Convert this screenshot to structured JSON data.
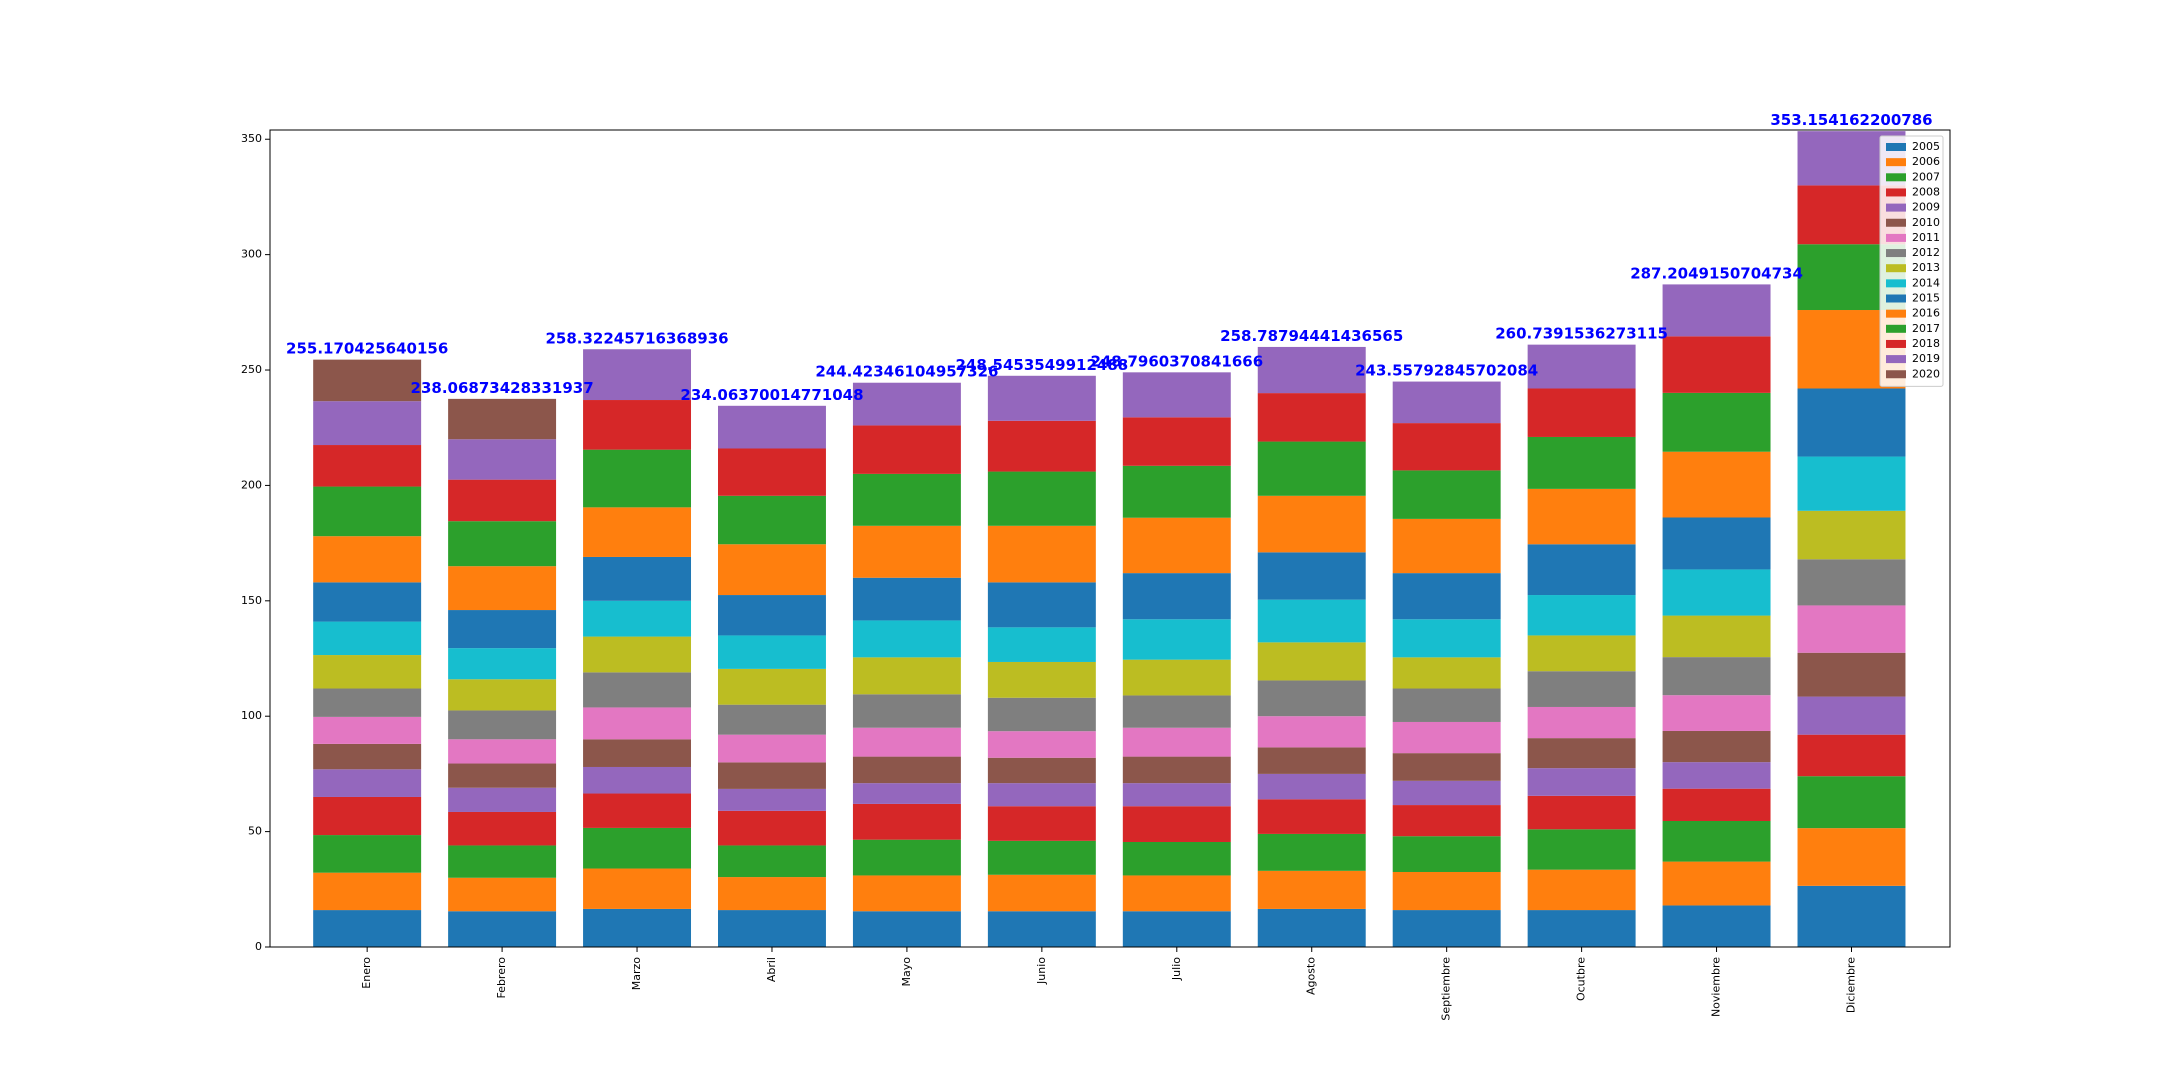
{
  "chart_data": {
    "type": "bar",
    "stacked": true,
    "title": "",
    "xlabel": "",
    "ylabel": "",
    "ylim": [
      0,
      354
    ],
    "yticks": [
      0,
      50,
      100,
      150,
      200,
      250,
      300,
      350
    ],
    "grid": false,
    "legend_position": "top-right",
    "categories": [
      "Enero",
      "Febrero",
      "Marzo",
      "Abril",
      "Mayo",
      "Junio",
      "Julio",
      "Agosto",
      "Septiembre",
      "Ocutbre",
      "Noviembre",
      "Diciembre"
    ],
    "totals_labels": [
      "255.170425640156",
      "238.06873428331937",
      "258.32245716368936",
      "234.06370014771048",
      "244.42346104957326",
      "248.5453549912488",
      "248.7960370841666",
      "258.78794441436565",
      "243.55792845702084",
      "260.7391536273115",
      "287.2049150704734",
      "353.154162200786"
    ],
    "series": [
      {
        "name": "2005",
        "color": "#1f77b4",
        "values": [
          16,
          15.5,
          16.5,
          16,
          15.5,
          15.5,
          15.5,
          16.5,
          16,
          16,
          18,
          26.5
        ]
      },
      {
        "name": "2006",
        "color": "#ff7f0e",
        "values": [
          16.2,
          14.5,
          17.5,
          14.3,
          15.5,
          15.8,
          15.5,
          16.5,
          16.5,
          17.5,
          19,
          25
        ]
      },
      {
        "name": "2007",
        "color": "#2ca02c",
        "values": [
          16.3,
          14,
          17.6,
          13.7,
          15.5,
          14.7,
          14.5,
          16,
          15.5,
          17.5,
          17.6,
          22.5
        ]
      },
      {
        "name": "2008",
        "color": "#d62728",
        "values": [
          16.5,
          14.5,
          14.9,
          15,
          15.5,
          15,
          15.5,
          15,
          13.5,
          14.5,
          14,
          18
        ]
      },
      {
        "name": "2009",
        "color": "#9467bd",
        "values": [
          12,
          10.5,
          11.5,
          9.5,
          9,
          10,
          10,
          11,
          10.5,
          12,
          11.5,
          16.5
        ]
      },
      {
        "name": "2010",
        "color": "#8c564b",
        "values": [
          11,
          10.5,
          12,
          11.5,
          11.5,
          11,
          11.5,
          11.5,
          12,
          13,
          13.5,
          19
        ]
      },
      {
        "name": "2011",
        "color": "#e377c2",
        "values": [
          11.7,
          10.5,
          13.8,
          12,
          12.5,
          11.5,
          12.5,
          13.5,
          13.5,
          13.5,
          15.5,
          20.5
        ]
      },
      {
        "name": "2012",
        "color": "#7f7f7f",
        "values": [
          12.3,
          12.5,
          15.2,
          13,
          14.5,
          14.5,
          14,
          15.5,
          14.5,
          15.5,
          16.5,
          20
        ]
      },
      {
        "name": "2013",
        "color": "#bcbd22",
        "values": [
          14.5,
          13.5,
          15.5,
          15.5,
          16,
          15.5,
          15.5,
          16.5,
          13.5,
          15.5,
          18,
          21
        ]
      },
      {
        "name": "2014",
        "color": "#17becf",
        "values": [
          14.5,
          13.5,
          15.5,
          14.5,
          16,
          15,
          17.5,
          18.5,
          16.5,
          17.5,
          20,
          23.5
        ]
      },
      {
        "name": "2015",
        "color": "#1f77b4",
        "values": [
          17,
          16.5,
          19,
          17.5,
          18.5,
          19.5,
          20,
          20.5,
          20,
          22,
          22.5,
          29.5
        ]
      },
      {
        "name": "2016",
        "color": "#ff7f0e",
        "values": [
          20,
          19,
          21.5,
          22,
          22.5,
          24.5,
          24,
          24.5,
          23.5,
          24,
          28.5,
          34
        ]
      },
      {
        "name": "2017",
        "color": "#2ca02c",
        "values": [
          21.5,
          19.5,
          25,
          21,
          22.5,
          23.5,
          22.5,
          23.5,
          21,
          22.5,
          25.5,
          28.5
        ]
      },
      {
        "name": "2018",
        "color": "#d62728",
        "values": [
          18,
          18,
          21.5,
          20.5,
          21,
          22,
          21,
          21,
          20.5,
          21,
          24.5,
          25.5
        ]
      },
      {
        "name": "2019",
        "color": "#9467bd",
        "values": [
          19,
          17.5,
          22,
          18.5,
          18.5,
          19.5,
          19.5,
          20,
          18,
          19,
          22.5,
          23.5
        ]
      },
      {
        "name": "2020",
        "color": "#8c564b",
        "values": [
          18,
          17.5,
          0,
          0,
          0,
          0,
          0,
          0,
          0,
          0,
          0,
          0
        ]
      }
    ]
  }
}
